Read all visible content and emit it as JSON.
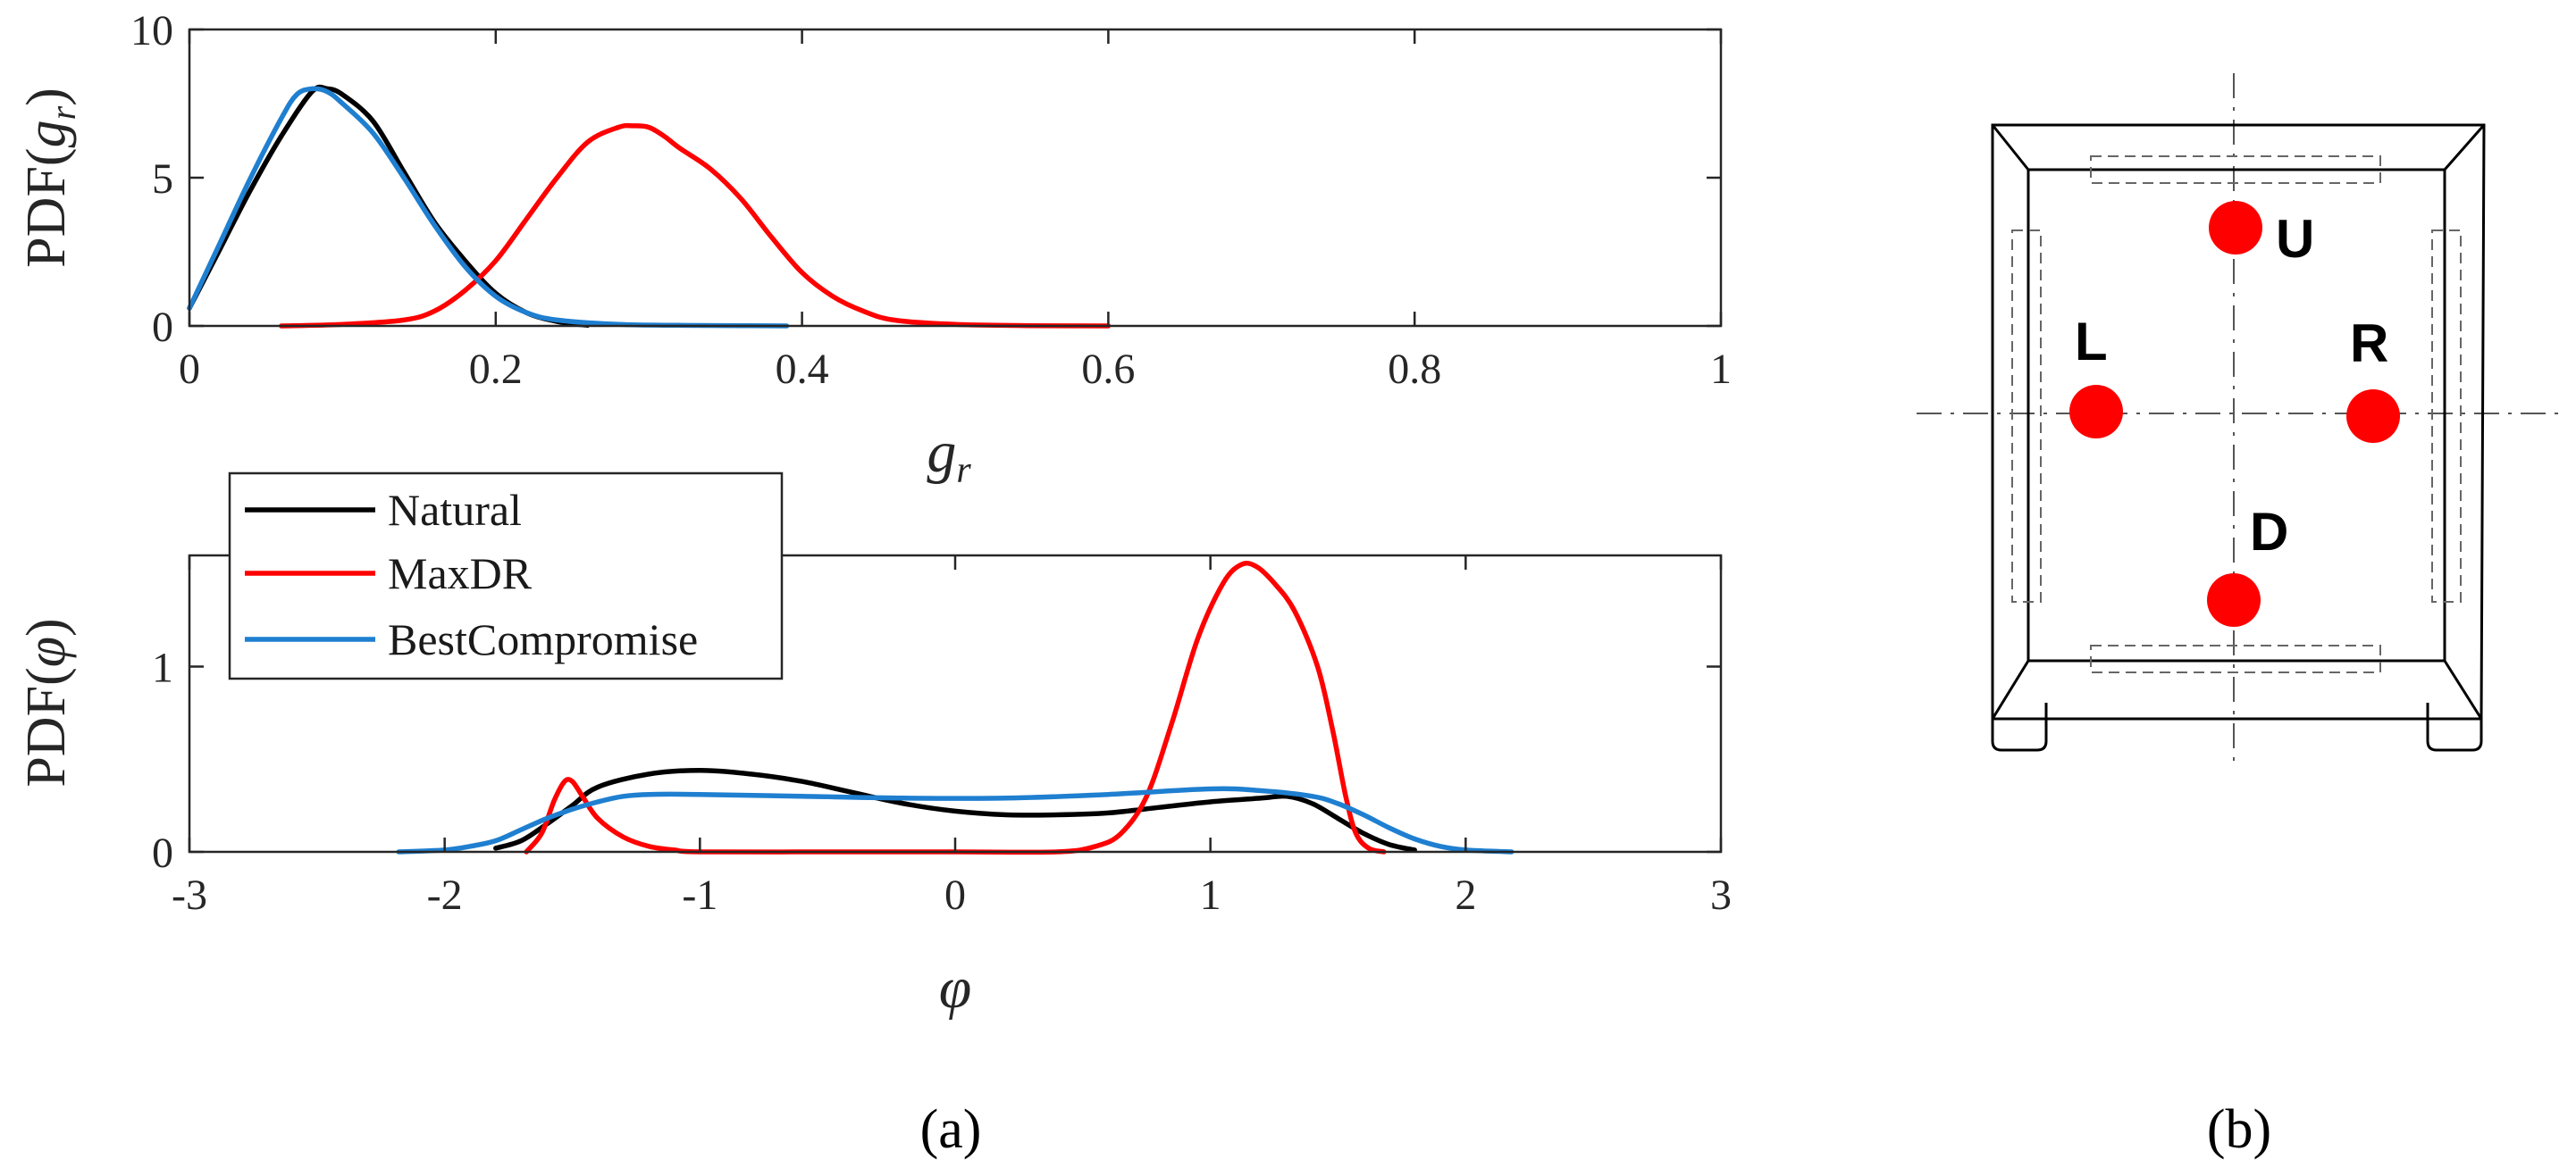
{
  "chart_data": [
    {
      "type": "line",
      "id": "top",
      "title": "",
      "xlabel": "g_r",
      "xlabel_main": "g",
      "xlabel_sub": "r",
      "ylabel": "PDF(g_r)",
      "ylabel_pre": "PDF(",
      "ylabel_sub_main": "g",
      "ylabel_sub": "r",
      "ylabel_post": ")",
      "xlim": [
        0,
        1
      ],
      "ylim": [
        0,
        10
      ],
      "xticks": [
        0,
        0.2,
        0.4,
        0.6,
        0.8,
        1
      ],
      "xtick_labels": [
        "0",
        "0.2",
        "0.4",
        "0.6",
        "0.8",
        "1"
      ],
      "yticks": [
        0,
        5,
        10
      ],
      "ytick_labels": [
        "0",
        "5",
        "10"
      ],
      "series": [
        {
          "name": "Natural",
          "color": "#000000",
          "x": [
            0,
            0.02,
            0.04,
            0.06,
            0.08,
            0.09,
            0.1,
            0.12,
            0.14,
            0.16,
            0.18,
            0.2,
            0.22,
            0.24,
            0.26
          ],
          "y": [
            0.6,
            2.6,
            4.6,
            6.4,
            7.9,
            8.0,
            7.8,
            6.9,
            5.2,
            3.5,
            2.2,
            1.1,
            0.45,
            0.15,
            0.02
          ]
        },
        {
          "name": "MaxDR",
          "color": "#ff0000",
          "x": [
            0.06,
            0.1,
            0.14,
            0.16,
            0.18,
            0.2,
            0.22,
            0.24,
            0.26,
            0.28,
            0.29,
            0.3,
            0.31,
            0.32,
            0.34,
            0.36,
            0.38,
            0.4,
            0.42,
            0.44,
            0.46,
            0.5,
            0.55,
            0.6
          ],
          "y": [
            0.0,
            0.05,
            0.2,
            0.5,
            1.2,
            2.2,
            3.6,
            5.0,
            6.2,
            6.7,
            6.75,
            6.7,
            6.4,
            6.0,
            5.3,
            4.3,
            3.0,
            1.8,
            1.0,
            0.5,
            0.2,
            0.05,
            0.01,
            0.0
          ]
        },
        {
          "name": "BestCompromise",
          "color": "#1f7fd0",
          "x": [
            0,
            0.02,
            0.04,
            0.06,
            0.07,
            0.08,
            0.09,
            0.1,
            0.12,
            0.14,
            0.16,
            0.18,
            0.2,
            0.22,
            0.24,
            0.28,
            0.32,
            0.36,
            0.39
          ],
          "y": [
            0.6,
            2.8,
            5.0,
            7.0,
            7.8,
            8.0,
            7.9,
            7.5,
            6.5,
            5.0,
            3.4,
            2.0,
            1.0,
            0.45,
            0.2,
            0.05,
            0.02,
            0.01,
            0.0
          ]
        }
      ]
    },
    {
      "type": "line",
      "id": "bottom",
      "title": "",
      "xlabel": "φ",
      "ylabel": "PDF(φ)",
      "ylabel_pre": "PDF(",
      "ylabel_sym": "φ",
      "ylabel_post": ")",
      "xlim": [
        -3,
        3
      ],
      "ylim": [
        0,
        1.6
      ],
      "xticks": [
        -3,
        -2,
        -1,
        0,
        1,
        2,
        3
      ],
      "xtick_labels": [
        "-3",
        "-2",
        "-1",
        "0",
        "1",
        "2",
        "3"
      ],
      "yticks": [
        0,
        1
      ],
      "ytick_labels": [
        "0",
        "1"
      ],
      "legend_position": "top-left outside",
      "series": [
        {
          "name": "Natural",
          "color": "#000000",
          "x": [
            -1.8,
            -1.7,
            -1.6,
            -1.5,
            -1.4,
            -1.2,
            -1.0,
            -0.8,
            -0.6,
            -0.4,
            -0.2,
            0.0,
            0.2,
            0.4,
            0.6,
            0.8,
            1.0,
            1.2,
            1.3,
            1.4,
            1.5,
            1.6,
            1.7,
            1.8
          ],
          "y": [
            0.02,
            0.06,
            0.15,
            0.25,
            0.35,
            0.42,
            0.44,
            0.42,
            0.38,
            0.32,
            0.26,
            0.22,
            0.2,
            0.2,
            0.21,
            0.24,
            0.27,
            0.29,
            0.3,
            0.26,
            0.18,
            0.1,
            0.04,
            0.01
          ]
        },
        {
          "name": "MaxDR",
          "color": "#ff0000",
          "x": [
            -1.68,
            -1.62,
            -1.57,
            -1.53,
            -1.5,
            -1.46,
            -1.4,
            -1.3,
            -1.2,
            -1.1,
            -1.0,
            -0.5,
            0.0,
            0.4,
            0.55,
            0.65,
            0.75,
            0.85,
            0.95,
            1.05,
            1.12,
            1.18,
            1.25,
            1.33,
            1.42,
            1.48,
            1.53,
            1.57,
            1.62,
            1.68
          ],
          "y": [
            0.0,
            0.1,
            0.28,
            0.38,
            0.38,
            0.3,
            0.18,
            0.08,
            0.03,
            0.01,
            0.0,
            0.0,
            0.0,
            0.0,
            0.03,
            0.1,
            0.3,
            0.7,
            1.15,
            1.45,
            1.55,
            1.54,
            1.45,
            1.3,
            1.0,
            0.65,
            0.3,
            0.1,
            0.02,
            0.0
          ]
        },
        {
          "name": "BestCompromise",
          "color": "#1f7fd0",
          "x": [
            -2.18,
            -2.0,
            -1.9,
            -1.8,
            -1.7,
            -1.6,
            -1.5,
            -1.4,
            -1.3,
            -1.2,
            -1.0,
            -0.6,
            -0.2,
            0.2,
            0.6,
            1.0,
            1.2,
            1.4,
            1.5,
            1.6,
            1.7,
            1.8,
            1.9,
            2.0,
            2.18
          ],
          "y": [
            0.0,
            0.01,
            0.03,
            0.06,
            0.12,
            0.18,
            0.23,
            0.27,
            0.3,
            0.31,
            0.31,
            0.3,
            0.29,
            0.29,
            0.31,
            0.34,
            0.33,
            0.3,
            0.26,
            0.2,
            0.13,
            0.07,
            0.03,
            0.01,
            0.0
          ]
        }
      ]
    }
  ],
  "legend": {
    "items": [
      {
        "label": "Natural",
        "color": "#000000"
      },
      {
        "label": "MaxDR",
        "color": "#ff0000"
      },
      {
        "label": "BestCompromise",
        "color": "#1f7fd0"
      }
    ]
  },
  "panels": {
    "a": "(a)",
    "b": "(b)"
  },
  "schematic": {
    "point_color": "#ff0000",
    "points": [
      {
        "label": "U"
      },
      {
        "label": "L"
      },
      {
        "label": "R"
      },
      {
        "label": "D"
      }
    ]
  }
}
